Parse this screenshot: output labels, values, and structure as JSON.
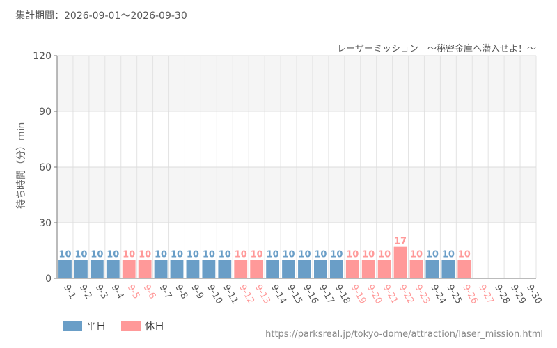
{
  "period_text": "集計期間：2026-09-01～2026-09-30",
  "source_text": "https://parksreal.jp/tokyo-dome/attraction/laser_mission.html",
  "colors": {
    "weekday": "#6a9ec7",
    "holiday": "#ff9999",
    "grid": "#e3e3e3",
    "band": "#f5f5f5"
  },
  "chart_data": {
    "type": "bar",
    "title": "レーザーミッション　～秘密金庫へ潜入せよ！～",
    "ylabel": "待ち時間（分）min",
    "ylim": [
      0,
      120
    ],
    "yticks": [
      0,
      30,
      60,
      90,
      120
    ],
    "categories": [
      "9-1",
      "9-2",
      "9-3",
      "9-4",
      "9-5",
      "9-6",
      "9-7",
      "9-8",
      "9-9",
      "9-10",
      "9-11",
      "9-12",
      "9-13",
      "9-14",
      "9-15",
      "9-16",
      "9-17",
      "9-18",
      "9-19",
      "9-20",
      "9-21",
      "9-22",
      "9-23",
      "9-24",
      "9-25",
      "9-26",
      "9-27",
      "9-28",
      "9-29",
      "9-30"
    ],
    "values": [
      10,
      10,
      10,
      10,
      10,
      10,
      10,
      10,
      10,
      10,
      10,
      10,
      10,
      10,
      10,
      10,
      10,
      10,
      10,
      10,
      10,
      17,
      10,
      10,
      10,
      10,
      null,
      null,
      null,
      null
    ],
    "day_type": [
      "weekday",
      "weekday",
      "weekday",
      "weekday",
      "holiday",
      "holiday",
      "weekday",
      "weekday",
      "weekday",
      "weekday",
      "weekday",
      "holiday",
      "holiday",
      "weekday",
      "weekday",
      "weekday",
      "weekday",
      "weekday",
      "holiday",
      "holiday",
      "holiday",
      "holiday",
      "holiday",
      "weekday",
      "weekday",
      "holiday",
      "holiday",
      "weekday",
      "weekday",
      "weekday"
    ],
    "legend": [
      {
        "key": "weekday",
        "label": "平日"
      },
      {
        "key": "holiday",
        "label": "休日"
      }
    ],
    "legend_position": "bottom-left",
    "grid": true
  }
}
